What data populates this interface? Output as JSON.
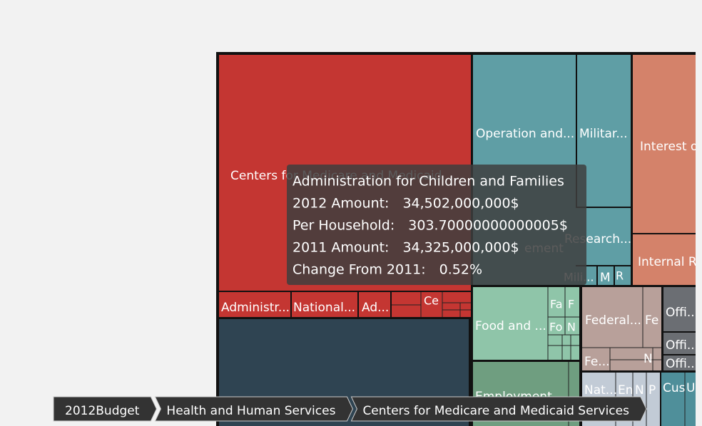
{
  "tiles": {
    "medicare": "Centers for Medicare and Medicaid",
    "admin1": "Administr...",
    "national": "National...",
    "ad": "Ad...",
    "ce": "Ce",
    "operation": "Operation and...",
    "military": "Militar...",
    "research": "Research...",
    "ement": "ement",
    "mili": "Mili...",
    "m": "M",
    "r": "R",
    "interest": "Interest o",
    "internal": "Internal R",
    "food": "Food and ...",
    "fa": "Fa",
    "f": "F",
    "fo": "Fo",
    "n1": "N",
    "employment": "Employment...",
    "federal": "Federal...",
    "fe1": "Fe",
    "fe2": "Fe...",
    "n2": "N",
    "offi1": "Offi...",
    "offi2": "Offi...",
    "offi3": "Offi...",
    "nat": "Nat...",
    "en": "En",
    "n3": "N",
    "p": "P",
    "cus": "Cus",
    "u": "U"
  },
  "tooltip": {
    "title": "Administration for Children and Families",
    "rows": [
      [
        "2012 Amount:",
        "34,502,000,000$"
      ],
      [
        "Per Household:",
        "303.70000000000005$"
      ],
      [
        "2011 Amount:",
        "34,325,000,000$"
      ],
      [
        "Change From 2011:",
        "0.52%"
      ]
    ]
  },
  "breadcrumb": [
    "2012Budget",
    "Health and Human Services",
    "Centers for Medicare and Medicaid Services"
  ]
}
